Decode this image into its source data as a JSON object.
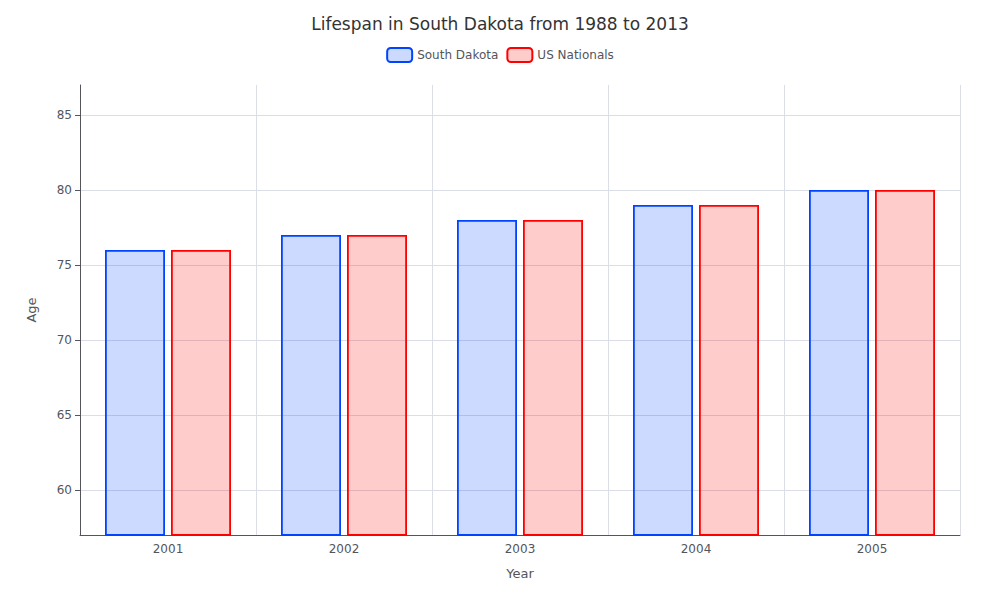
{
  "chart_data": {
    "type": "bar",
    "title": "Lifespan in South Dakota from 1988 to 2013",
    "xlabel": "Year",
    "ylabel": "Age",
    "categories": [
      "2001",
      "2002",
      "2003",
      "2004",
      "2005"
    ],
    "series": [
      {
        "name": "South Dakota",
        "color": "#0044ff",
        "values": [
          76,
          77,
          78,
          79,
          80
        ]
      },
      {
        "name": "US Nationals",
        "color": "#ff0000",
        "values": [
          76,
          77,
          78,
          79,
          80
        ]
      }
    ],
    "ylim": [
      57,
      87
    ],
    "yticks": [
      60,
      65,
      70,
      75,
      80,
      85
    ],
    "grid": true,
    "legend": "top"
  }
}
